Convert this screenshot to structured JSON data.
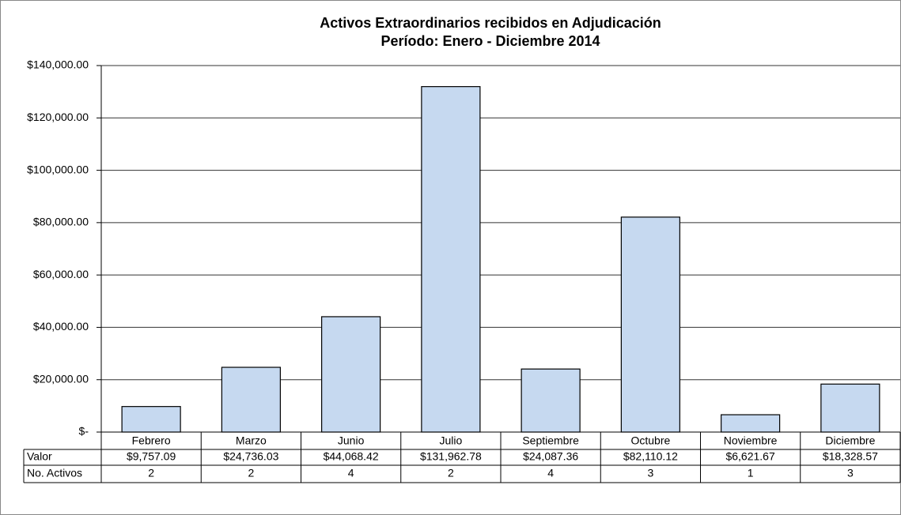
{
  "chart_data": {
    "type": "bar",
    "title": "Activos Extraordinarios recibidos en Adjudicación",
    "subtitle": "Período: Enero - Diciembre 2014",
    "categories": [
      "Febrero",
      "Marzo",
      "Junio",
      "Julio",
      "Septiembre",
      "Octubre",
      "Noviembre",
      "Diciembre"
    ],
    "values": [
      9757.09,
      24736.03,
      44068.42,
      131962.78,
      24087.36,
      82110.12,
      6621.67,
      18328.57
    ],
    "value_labels": [
      "$9,757.09",
      "$24,736.03",
      "$44,068.42",
      "$131,962.78",
      "$24,087.36",
      "$82,110.12",
      "$6,621.67",
      "$18,328.57"
    ],
    "color": "#c6d9f0",
    "ylim": [
      0,
      140000
    ],
    "yticks": [
      {
        "value": 0,
        "label": "$-"
      },
      {
        "value": 20000,
        "label": "$20,000.00"
      },
      {
        "value": 40000,
        "label": "$40,000.00"
      },
      {
        "value": 60000,
        "label": "$60,000.00"
      },
      {
        "value": 80000,
        "label": "$80,000.00"
      },
      {
        "value": 100000,
        "label": "$100,000.00"
      },
      {
        "value": 120000,
        "label": "$120,000.00"
      },
      {
        "value": 140000,
        "label": "$140,000.00"
      }
    ],
    "grid": true
  },
  "table": {
    "row_labels": [
      "Valor",
      "No. Activos"
    ],
    "counts": [
      2,
      2,
      4,
      2,
      4,
      3,
      1,
      3
    ]
  }
}
